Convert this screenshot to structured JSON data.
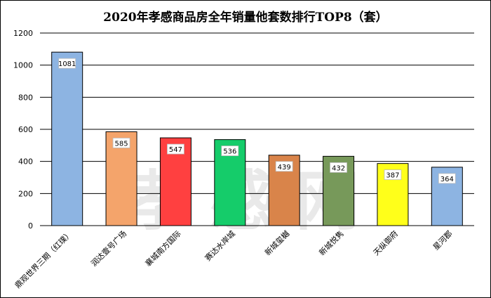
{
  "chart_data": {
    "type": "bar",
    "title": "2020年孝感商品房全年销量他套数排行TOP8（套）",
    "categories": [
      "鼎观世界三期（红璞）",
      "润达壹号广场",
      "襄城南方国际",
      "赛达水岸城",
      "新城玺樾",
      "新城悦隽",
      "天纵御府",
      "星河郡"
    ],
    "values": [
      1081,
      585,
      547,
      536,
      439,
      432,
      387,
      364
    ],
    "colors": [
      "#8DB4E2",
      "#F4A46B",
      "#FF4040",
      "#15CC6A",
      "#D9844A",
      "#77995A",
      "#FFFF1A",
      "#8DB4E2"
    ],
    "ylim": [
      0,
      1200
    ],
    "yticks": [
      0,
      200,
      400,
      600,
      800,
      1000,
      1200
    ],
    "grid": true,
    "watermark": "孝感网"
  }
}
